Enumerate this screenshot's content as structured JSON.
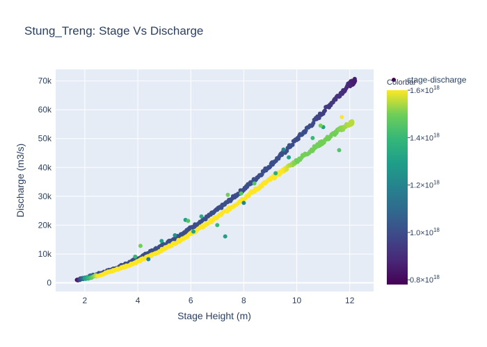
{
  "chart_data": {
    "type": "scatter",
    "title": "Stung_Treng: Stage Vs Discharge",
    "xlabel": "Stage Height (m)",
    "ylabel": "Discharge (m3/s)",
    "xlim": [
      0.9,
      12.9
    ],
    "ylim": [
      -3000,
      74000
    ],
    "x_ticks": [
      2,
      4,
      6,
      8,
      10,
      12
    ],
    "x_tick_labels": [
      "2",
      "4",
      "6",
      "8",
      "10",
      "12"
    ],
    "y_ticks": [
      0,
      10000,
      20000,
      30000,
      40000,
      50000,
      60000,
      70000
    ],
    "y_tick_labels": [
      "0",
      "10k",
      "20k",
      "30k",
      "40k",
      "50k",
      "60k",
      "70k"
    ],
    "grid": true,
    "legend": {
      "position": "top-right",
      "entries": [
        "stage-discharge"
      ]
    },
    "colorbar": {
      "title": "Colorbar",
      "colorscale": "viridis",
      "range": [
        0.78,
        1.6
      ],
      "tick_values": [
        0.8,
        1.0,
        1.2,
        1.4,
        1.6
      ],
      "tick_label_base": "×10",
      "tick_label_exponent": "18"
    },
    "series": [
      {
        "name": "stage-discharge",
        "branches": [
          {
            "x": [
              1.7,
              2.0,
              2.5,
              3.0,
              3.5,
              4.0,
              4.5,
              5.0,
              5.5,
              6.0,
              6.5,
              7.0,
              7.5,
              8.0,
              8.5,
              9.0,
              9.5,
              10.0,
              10.5,
              11.0,
              11.5,
              12.0,
              12.2
            ],
            "y": [
              1000,
              1700,
              3000,
              4500,
              6300,
              8400,
              10800,
              13300,
              16000,
              19000,
              22000,
              25300,
              28800,
              32500,
              36500,
              40800,
              45000,
              49800,
              54400,
              59300,
              64300,
              68900,
              70000
            ],
            "color_value": [
              0.8,
              1.2,
              1.0,
              1.0,
              1.0,
              1.0,
              1.0,
              1.0,
              1.0,
              1.0,
              1.0,
              1.0,
              1.0,
              1.0,
              1.0,
              1.0,
              1.0,
              1.0,
              1.0,
              0.95,
              0.92,
              0.88,
              0.85
            ]
          },
          {
            "x": [
              2.0,
              2.5,
              3.0,
              3.5,
              4.0,
              4.5,
              5.0,
              5.5,
              6.0,
              6.5,
              7.0,
              7.5,
              8.0,
              8.5,
              9.0,
              9.5,
              10.0,
              10.5,
              11.0,
              11.5,
              12.0,
              12.1
            ],
            "y": [
              1500,
              2600,
              4000,
              5600,
              7400,
              9500,
              11800,
              14300,
              17000,
              19800,
              22800,
              26000,
              29300,
              32600,
              35800,
              39000,
              42300,
              45700,
              49000,
              52300,
              55200,
              55600
            ],
            "color_value": [
              1.3,
              1.6,
              1.6,
              1.6,
              1.6,
              1.6,
              1.6,
              1.6,
              1.6,
              1.6,
              1.6,
              1.6,
              1.6,
              1.6,
              1.6,
              1.6,
              1.5,
              1.5,
              1.5,
              1.5,
              1.55,
              1.55
            ]
          }
        ],
        "outliers": {
          "x": [
            4.4,
            4.9,
            5.4,
            5.8,
            6.4,
            7.0,
            7.3,
            7.9,
            8.4,
            9.2,
            9.7,
            10.3,
            10.6,
            11.0,
            11.6,
            4.1,
            3.9,
            6.1,
            8.0,
            10.9,
            5.9,
            7.4,
            9.5,
            11.7
          ],
          "y": [
            8200,
            14500,
            16500,
            21800,
            23000,
            20000,
            16100,
            31000,
            34500,
            38000,
            43500,
            44500,
            50200,
            54000,
            46000,
            12800,
            9100,
            17800,
            27700,
            54500,
            21500,
            30500,
            46200,
            57500
          ],
          "color_value": [
            1.2,
            1.3,
            1.25,
            1.3,
            1.35,
            1.4,
            1.3,
            1.45,
            1.45,
            1.35,
            1.3,
            1.5,
            1.4,
            1.3,
            1.45,
            1.5,
            1.4,
            1.3,
            1.2,
            1.5,
            1.45,
            1.5,
            1.2,
            1.6
          ]
        }
      }
    ]
  }
}
